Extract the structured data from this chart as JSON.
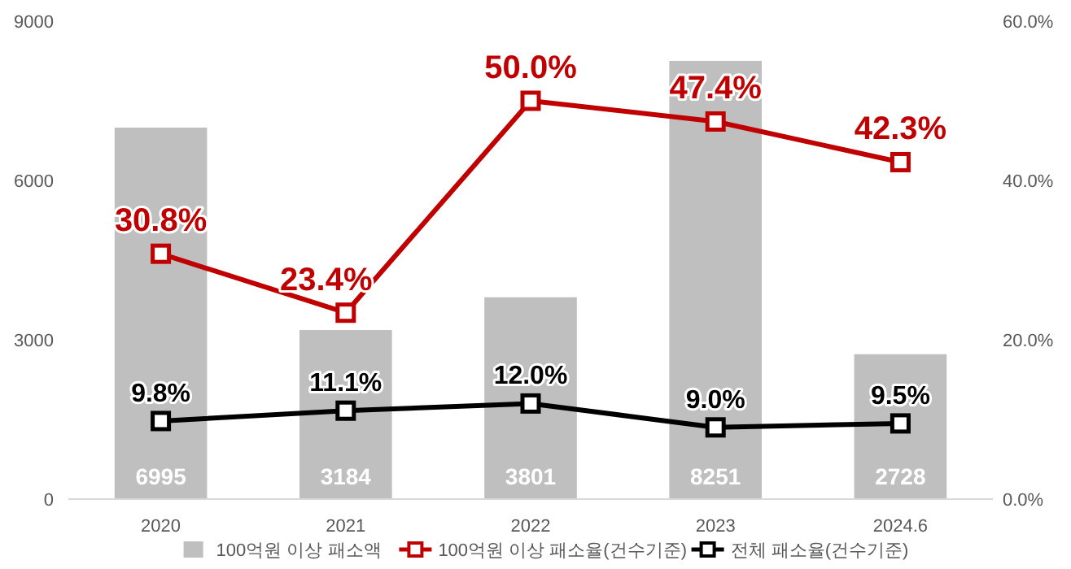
{
  "chart_data": {
    "type": "bar",
    "categories": [
      "2020",
      "2021",
      "2022",
      "2023",
      "2024.6"
    ],
    "series": [
      {
        "name": "100억원 이상 패소액",
        "color": "#bfbfbf",
        "values": [
          6995,
          3184,
          3801,
          8251,
          2728
        ],
        "value_labels": [
          "6995",
          "3184",
          "3801",
          "8251",
          "2728"
        ]
      },
      {
        "name": "100억원 이상 패소율(건수기준)",
        "type": "line",
        "axis": "y2",
        "color": "#c00000",
        "values": [
          30.8,
          23.4,
          50.0,
          47.4,
          42.3
        ],
        "value_labels": [
          "30.8%",
          "23.4%",
          "50.0%",
          "47.4%",
          "42.3%"
        ]
      },
      {
        "name": "전체 패소율(건수기준)",
        "type": "line",
        "axis": "y2",
        "color": "#000000",
        "values": [
          9.8,
          11.1,
          12.0,
          9.0,
          9.5
        ],
        "value_labels": [
          "9.8%",
          "11.1%",
          "12.0%",
          "9.0%",
          "9.5%"
        ]
      }
    ],
    "ylim": [
      0,
      9000
    ],
    "yticks": [
      0,
      3000,
      6000,
      9000
    ],
    "y2lim": [
      0,
      60
    ],
    "y2ticks": [
      {
        "value": 0,
        "label": "0.0%"
      },
      {
        "value": 20,
        "label": "20.0%"
      },
      {
        "value": 40,
        "label": "40.0%"
      },
      {
        "value": 60,
        "label": "60.0%"
      }
    ],
    "marker": "square",
    "legend": "bottom",
    "grid": false
  }
}
